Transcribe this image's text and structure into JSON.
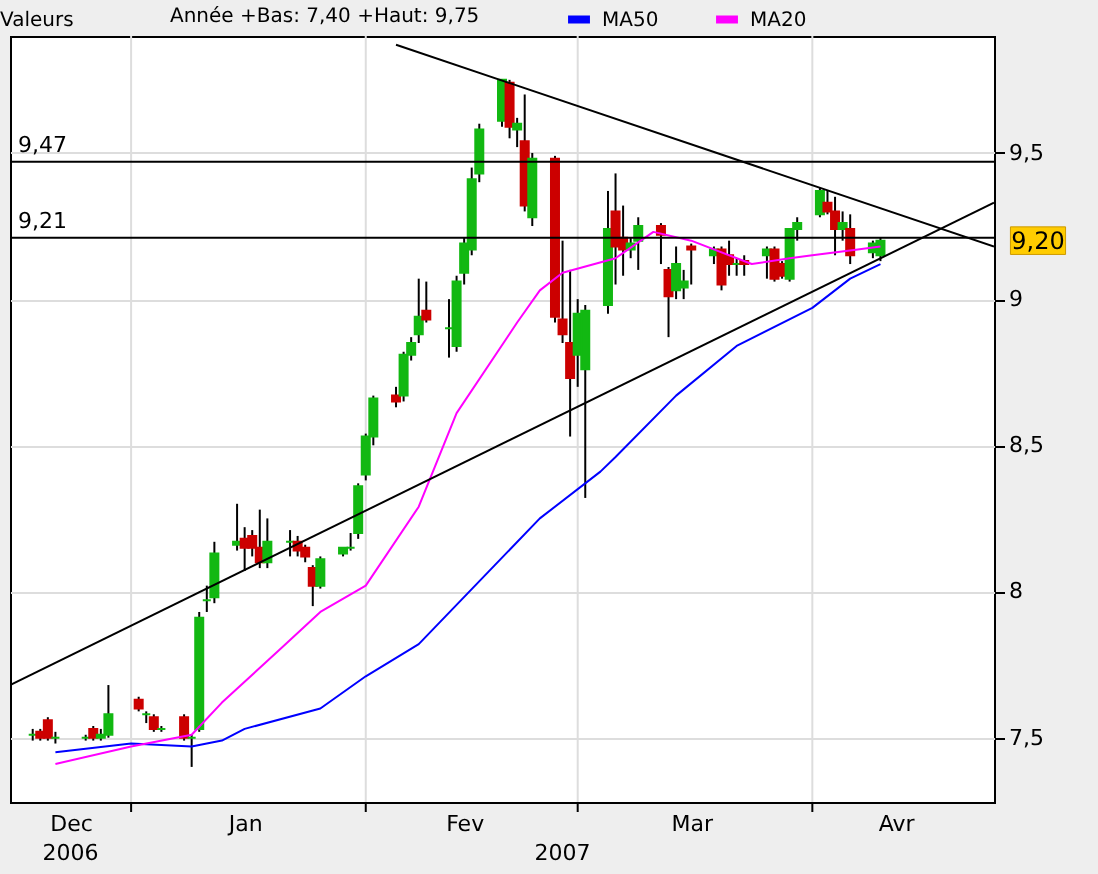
{
  "chart_data": {
    "type": "candlestick",
    "legend_title": "Valeurs",
    "subtitle": "Année +Bas: 7,40 +Haut: 9,75",
    "x": [
      "2006-12-19",
      "2006-12-20",
      "2006-12-21",
      "2006-12-22",
      "2006-12-26",
      "2006-12-27",
      "2006-12-28",
      "2006-12-29",
      "2007-01-02",
      "2007-01-03",
      "2007-01-04",
      "2007-01-05",
      "2007-01-08",
      "2007-01-09",
      "2007-01-10",
      "2007-01-11",
      "2007-01-12",
      "2007-01-15",
      "2007-01-16",
      "2007-01-17",
      "2007-01-18",
      "2007-01-19",
      "2007-01-22",
      "2007-01-23",
      "2007-01-24",
      "2007-01-25",
      "2007-01-26",
      "2007-01-29",
      "2007-01-30",
      "2007-01-31",
      "2007-02-01",
      "2007-02-02",
      "2007-02-05",
      "2007-02-06",
      "2007-02-07",
      "2007-02-08",
      "2007-02-09",
      "2007-02-12",
      "2007-02-13",
      "2007-02-14",
      "2007-02-15",
      "2007-02-16",
      "2007-02-19",
      "2007-02-20",
      "2007-02-21",
      "2007-02-22",
      "2007-02-23",
      "2007-02-26",
      "2007-02-27",
      "2007-02-28",
      "2007-03-01",
      "2007-03-02",
      "2007-03-05",
      "2007-03-06",
      "2007-03-07",
      "2007-03-08",
      "2007-03-09",
      "2007-03-12",
      "2007-03-13",
      "2007-03-14",
      "2007-03-15",
      "2007-03-16",
      "2007-03-19",
      "2007-03-20",
      "2007-03-21",
      "2007-03-22",
      "2007-03-23",
      "2007-03-26",
      "2007-03-27",
      "2007-03-28",
      "2007-03-29",
      "2007-03-30",
      "2007-04-02",
      "2007-04-03",
      "2007-04-04",
      "2007-04-05",
      "2007-04-06",
      "2007-04-09",
      "2007-04-10"
    ],
    "ohlc": [
      [
        7.51,
        7.53,
        7.49,
        7.51
      ],
      [
        7.52,
        7.53,
        7.49,
        7.5
      ],
      [
        7.56,
        7.57,
        7.49,
        7.5
      ],
      [
        7.5,
        7.52,
        7.48,
        7.5
      ],
      [
        7.5,
        7.51,
        7.49,
        7.5
      ],
      [
        7.53,
        7.54,
        7.49,
        7.5
      ],
      [
        7.5,
        7.53,
        7.49,
        7.51
      ],
      [
        7.51,
        7.68,
        7.5,
        7.58
      ],
      [
        7.63,
        7.64,
        7.59,
        7.6
      ],
      [
        7.58,
        7.59,
        7.55,
        7.58
      ],
      [
        7.57,
        7.58,
        7.52,
        7.53
      ],
      [
        7.53,
        7.54,
        7.52,
        7.53
      ],
      [
        7.57,
        7.58,
        7.49,
        7.5
      ],
      [
        7.5,
        7.51,
        7.4,
        7.5
      ],
      [
        7.53,
        7.93,
        7.52,
        7.91
      ],
      [
        7.97,
        8.02,
        7.93,
        7.97
      ],
      [
        7.98,
        8.17,
        7.96,
        8.13
      ],
      [
        8.16,
        8.3,
        8.14,
        8.17
      ],
      [
        8.18,
        8.22,
        8.07,
        8.15
      ],
      [
        8.19,
        8.21,
        8.12,
        8.15
      ],
      [
        8.15,
        8.28,
        8.08,
        8.1
      ],
      [
        8.1,
        8.25,
        8.08,
        8.17
      ],
      [
        8.17,
        8.21,
        8.12,
        8.17
      ],
      [
        8.17,
        8.19,
        8.12,
        8.14
      ],
      [
        8.15,
        8.16,
        8.1,
        8.12
      ],
      [
        8.08,
        8.09,
        7.95,
        8.02
      ],
      [
        8.02,
        8.12,
        8.01,
        8.11
      ],
      [
        8.13,
        8.15,
        8.12,
        8.15
      ],
      [
        8.15,
        8.2,
        8.14,
        8.15
      ],
      [
        8.2,
        8.37,
        8.18,
        8.36
      ],
      [
        8.4,
        8.54,
        8.38,
        8.53
      ],
      [
        8.53,
        8.67,
        8.5,
        8.66
      ],
      [
        8.67,
        8.7,
        8.63,
        8.65
      ],
      [
        8.67,
        8.82,
        8.65,
        8.81
      ],
      [
        8.81,
        8.87,
        8.79,
        8.85
      ],
      [
        8.88,
        9.07,
        8.85,
        8.94
      ],
      [
        8.96,
        9.06,
        8.92,
        8.93
      ],
      [
        8.9,
        9.0,
        8.8,
        8.9
      ],
      [
        8.84,
        9.08,
        8.82,
        9.06
      ],
      [
        9.09,
        9.21,
        9.05,
        9.19
      ],
      [
        9.17,
        9.45,
        9.15,
        9.41
      ],
      [
        9.43,
        9.6,
        9.4,
        9.58
      ],
      [
        9.61,
        9.75,
        9.59,
        9.75
      ],
      [
        9.74,
        9.75,
        9.55,
        9.59
      ],
      [
        9.58,
        9.62,
        9.52,
        9.6
      ],
      [
        9.54,
        9.7,
        9.3,
        9.32
      ],
      [
        9.28,
        9.5,
        9.25,
        9.48
      ],
      [
        9.48,
        9.49,
        8.92,
        8.94
      ],
      [
        8.93,
        9.2,
        8.85,
        8.88
      ],
      [
        8.85,
        9.1,
        8.53,
        8.73
      ],
      [
        8.81,
        9.0,
        8.7,
        8.95
      ],
      [
        8.76,
        8.98,
        8.32,
        8.96
      ],
      [
        8.98,
        9.37,
        8.95,
        9.24
      ],
      [
        9.3,
        9.43,
        9.05,
        9.18
      ],
      [
        9.21,
        9.32,
        9.08,
        9.17
      ],
      [
        9.17,
        9.21,
        9.14,
        9.19
      ],
      [
        9.2,
        9.28,
        9.1,
        9.25
      ],
      [
        9.25,
        9.26,
        9.12,
        9.22
      ],
      [
        9.1,
        9.11,
        8.87,
        9.01
      ],
      [
        9.03,
        9.18,
        9.0,
        9.12
      ],
      [
        9.04,
        9.1,
        9.0,
        9.06
      ],
      [
        9.18,
        9.19,
        9.05,
        9.17
      ],
      [
        9.15,
        9.18,
        9.12,
        9.17
      ],
      [
        9.17,
        9.18,
        9.03,
        9.05
      ],
      [
        9.15,
        9.2,
        9.08,
        9.12
      ],
      [
        9.12,
        9.14,
        9.08,
        9.12
      ],
      [
        9.13,
        9.15,
        9.08,
        9.12
      ],
      [
        9.15,
        9.18,
        9.07,
        9.17
      ],
      [
        9.17,
        9.18,
        9.06,
        9.07
      ],
      [
        9.12,
        9.13,
        9.07,
        9.08
      ],
      [
        9.07,
        9.24,
        9.06,
        9.24
      ],
      [
        9.24,
        9.28,
        9.2,
        9.26
      ],
      [
        9.29,
        9.38,
        9.28,
        9.37
      ],
      [
        9.33,
        9.37,
        9.29,
        9.3
      ],
      [
        9.3,
        9.35,
        9.15,
        9.24
      ],
      [
        9.24,
        9.3,
        9.2,
        9.26
      ],
      [
        9.24,
        9.29,
        9.12,
        9.15
      ],
      [
        9.16,
        9.2,
        9.14,
        9.19
      ],
      [
        9.15,
        9.21,
        9.13,
        9.2
      ]
    ],
    "colors": [
      "#12b812",
      "#cc0000",
      "#cc0000",
      "#12b812",
      "#12b812",
      "#cc0000",
      "#12b812",
      "#12b812",
      "#cc0000",
      "#12b812",
      "#cc0000",
      "#12b812",
      "#cc0000",
      "#12b812",
      "#12b812",
      "#12b812",
      "#12b812",
      "#12b812",
      "#cc0000",
      "#cc0000",
      "#cc0000",
      "#12b812",
      "#12b812",
      "#cc0000",
      "#cc0000",
      "#cc0000",
      "#12b812",
      "#12b812",
      "#12b812",
      "#12b812",
      "#12b812",
      "#12b812",
      "#cc0000",
      "#12b812",
      "#12b812",
      "#12b812",
      "#cc0000",
      "#12b812",
      "#12b812",
      "#12b812",
      "#12b812",
      "#12b812",
      "#12b812",
      "#cc0000",
      "#12b812",
      "#cc0000",
      "#12b812",
      "#cc0000",
      "#cc0000",
      "#cc0000",
      "#12b812",
      "#12b812",
      "#12b812",
      "#cc0000",
      "#cc0000",
      "#12b812",
      "#12b812",
      "#cc0000",
      "#cc0000",
      "#12b812",
      "#12b812",
      "#cc0000",
      "#12b812",
      "#cc0000",
      "#cc0000",
      "#12b812",
      "#cc0000",
      "#12b812",
      "#cc0000",
      "#cc0000",
      "#12b812",
      "#12b812",
      "#12b812",
      "#cc0000",
      "#cc0000",
      "#12b812",
      "#cc0000",
      "#12b812",
      "#12b812"
    ],
    "series": [
      {
        "type": "line",
        "name": "MA50",
        "color": "#0000ff",
        "x": [
          "2006-12-22",
          "2007-01-01",
          "2007-01-09",
          "2007-01-13",
          "2007-01-16",
          "2007-01-26",
          "2007-02-01",
          "2007-02-08",
          "2007-02-24",
          "2007-03-04",
          "2007-03-06",
          "2007-03-14",
          "2007-03-22",
          "2007-04-01",
          "2007-04-06",
          "2007-04-10"
        ],
        "values": [
          7.45,
          7.48,
          7.47,
          7.49,
          7.53,
          7.6,
          7.71,
          7.82,
          8.25,
          8.41,
          8.46,
          8.67,
          8.84,
          8.97,
          9.07,
          9.12
        ]
      },
      {
        "type": "line",
        "name": "MA20",
        "color": "#ff00ff",
        "x": [
          "2006-12-22",
          "2007-01-01",
          "2007-01-09",
          "2007-01-13",
          "2007-01-21",
          "2007-01-26",
          "2007-02-01",
          "2007-02-08",
          "2007-02-13",
          "2007-02-21",
          "2007-02-24",
          "2007-02-27",
          "2007-03-06",
          "2007-03-11",
          "2007-03-16",
          "2007-03-24",
          "2007-03-29",
          "2007-04-01",
          "2007-04-07",
          "2007-04-10"
        ],
        "values": [
          7.41,
          7.47,
          7.51,
          7.62,
          7.81,
          7.93,
          8.02,
          8.29,
          8.61,
          8.92,
          9.03,
          9.09,
          9.14,
          9.23,
          9.2,
          9.12,
          9.14,
          9.15,
          9.17,
          9.18
        ]
      },
      {
        "type": "line",
        "color": "#000000",
        "x": [
          "2007-02-05",
          "2007-04-25"
        ],
        "values": [
          9.87,
          9.18
        ]
      },
      {
        "type": "line",
        "color": "#000000",
        "x": [
          "2006-12-16",
          "2007-04-25"
        ],
        "values": [
          7.68,
          9.33
        ]
      }
    ],
    "ref_lines": [
      {
        "axis": "y",
        "value": 9.47,
        "label": "9,47",
        "color": "#000000"
      },
      {
        "axis": "y",
        "value": 9.21,
        "label": "9,21",
        "color": "#000000"
      }
    ],
    "annotations": [
      "9,20",
      "2006",
      "2007"
    ],
    "xlim": [
      "2006-12-16",
      "2007-04-25"
    ],
    "xticks": [
      {
        "value": "2006-12-24",
        "label": "Dec"
      },
      {
        "value": "2007-01-01",
        "label": null
      },
      {
        "value": "2007-01-16",
        "label": "Jan"
      },
      {
        "value": "2007-02-01",
        "label": null
      },
      {
        "value": "2007-02-14",
        "label": "Fev"
      },
      {
        "value": "2007-03-01",
        "label": null
      },
      {
        "value": "2007-03-16",
        "label": "Mar"
      },
      {
        "value": "2007-04-01",
        "label": null
      },
      {
        "value": "2007-04-12",
        "label": "Avr"
      }
    ],
    "ylim": [
      7.28,
      9.9
    ],
    "yticks": [
      {
        "value": 7.5,
        "label": "7,5"
      },
      {
        "value": 8,
        "label": "8"
      },
      {
        "value": 8.5,
        "label": "8,5"
      },
      {
        "value": 9,
        "label": "9"
      },
      {
        "value": 9.5,
        "label": "9,5"
      }
    ],
    "grid": true,
    "legend": "top"
  }
}
